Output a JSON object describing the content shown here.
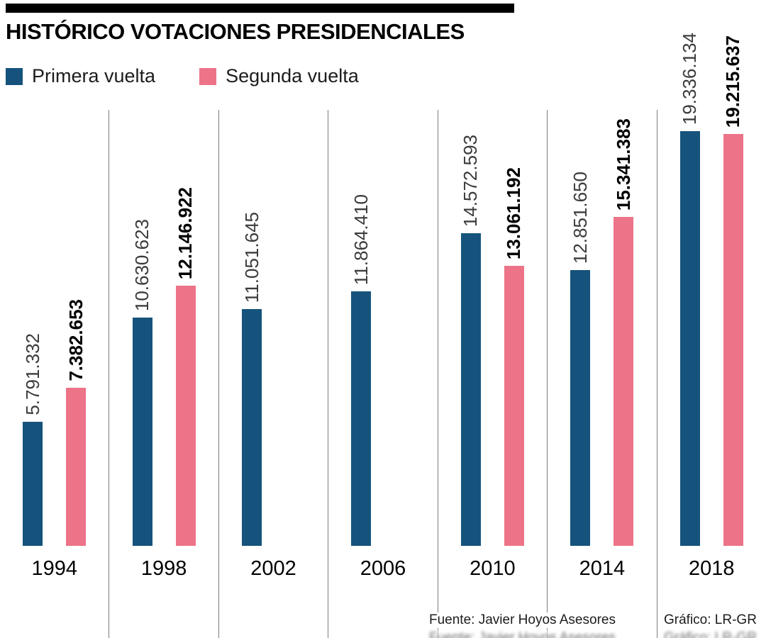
{
  "title": "HISTÓRICO VOTACIONES PRESIDENCIALES",
  "colors": {
    "primera": "#15537c",
    "segunda": "#ed7388",
    "separator": "#7d7d7d"
  },
  "legend": [
    {
      "label": "Primera vuelta",
      "color": "#15537c"
    },
    {
      "label": "Segunda vuelta",
      "color": "#ed7388"
    }
  ],
  "chart_data": {
    "type": "bar",
    "title": "HISTÓRICO VOTACIONES PRESIDENCIALES",
    "categories": [
      "1994",
      "1998",
      "2002",
      "2006",
      "2010",
      "2014",
      "2018"
    ],
    "series": [
      {
        "name": "Primera vuelta",
        "values": [
          5791332,
          10630623,
          11051645,
          11864410,
          14572593,
          12851650,
          19336134
        ],
        "labels": [
          "5.791.332",
          "10.630.623",
          "11.051.645",
          "11.864.410",
          "14.572.593",
          "12.851.650",
          "19.336.134"
        ]
      },
      {
        "name": "Segunda vuelta",
        "values": [
          7382653,
          12146922,
          null,
          null,
          13061192,
          15341383,
          19215637
        ],
        "labels": [
          "7.382.653",
          "12.146.922",
          null,
          null,
          "13.061.192",
          "15.341.383",
          "19.215.637"
        ]
      }
    ],
    "xlabel": "",
    "ylabel": "",
    "ylim": [
      0,
      19336134
    ],
    "grid": false,
    "legend_position": "top-left",
    "value_labels": "rotated-90-above-bars"
  },
  "footer": {
    "source": "Fuente: Javier Hoyos Asesores",
    "credit": "Gráfico: LR-GR"
  }
}
